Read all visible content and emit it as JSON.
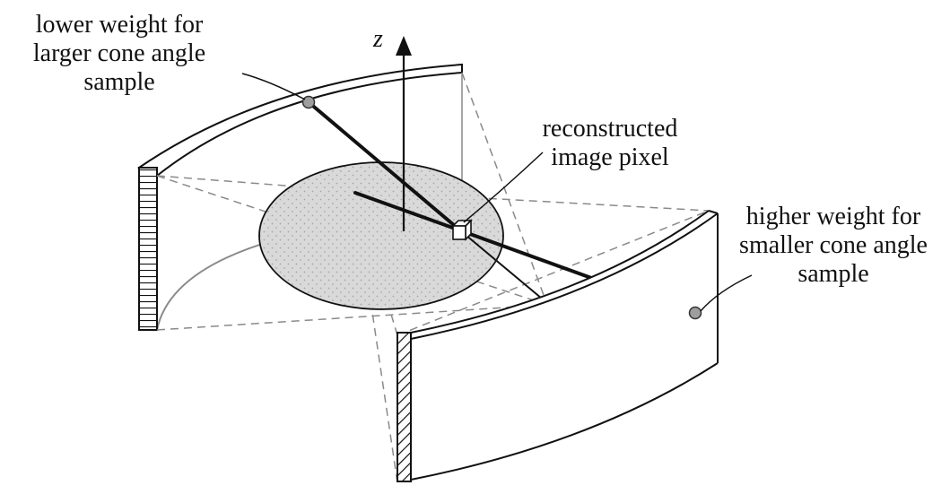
{
  "labels": {
    "axis": "z",
    "lower_weight": {
      "line1": "lower weight for",
      "line2": "larger cone angle",
      "line3": "sample"
    },
    "pixel": {
      "line1": "reconstructed",
      "line2": "image pixel"
    },
    "higher_weight": {
      "line1": "higher weight for",
      "line2": "smaller cone angle",
      "line3": "sample"
    }
  },
  "colors": {
    "disk_fill": "#d9d9d9",
    "sample_dot": "#9e9e9e",
    "stroke": "#111111",
    "dash": "#8a8a8a"
  },
  "icons": {
    "axis": "arrow-up-icon",
    "pixel": "cube-icon"
  }
}
